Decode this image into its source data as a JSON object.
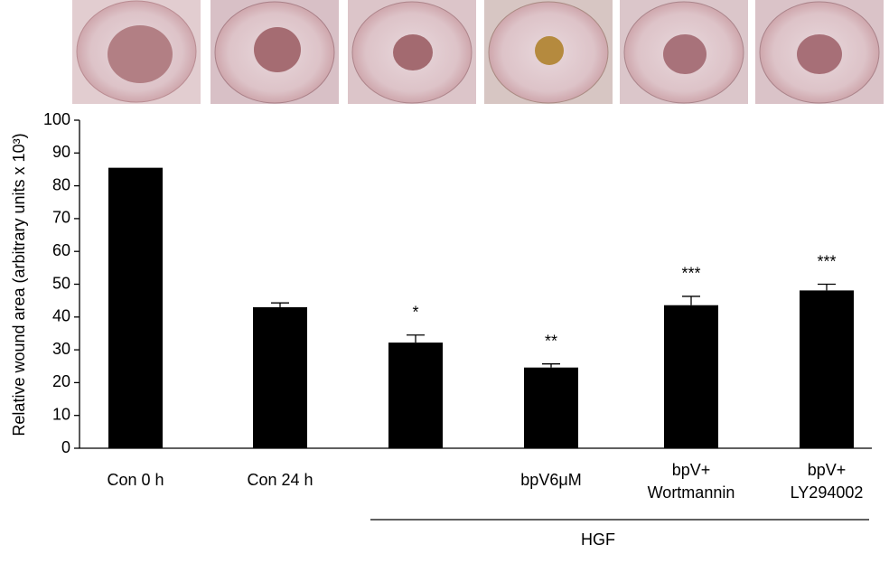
{
  "chart_data": {
    "type": "bar",
    "y_label": "Relative wound area (arbitrary units x 10³)",
    "categories": [
      "Con 0 h",
      "Con 24 h",
      null,
      "bpV6μM",
      "bpV+\nWortmannin",
      "bpV+\nLY294002"
    ],
    "values": [
      85.5,
      43,
      32.2,
      24.6,
      43.6,
      48.1
    ],
    "errors": [
      null,
      1.3,
      2.3,
      1.1,
      2.7,
      1.9
    ],
    "annotations": [
      null,
      null,
      "*",
      "**",
      "***",
      "***"
    ],
    "group_label": "HGF",
    "color": "#000000",
    "ylim": [
      0,
      100
    ],
    "yticks": [
      0,
      10,
      20,
      30,
      40,
      50,
      60,
      70,
      80,
      90,
      100
    ]
  }
}
